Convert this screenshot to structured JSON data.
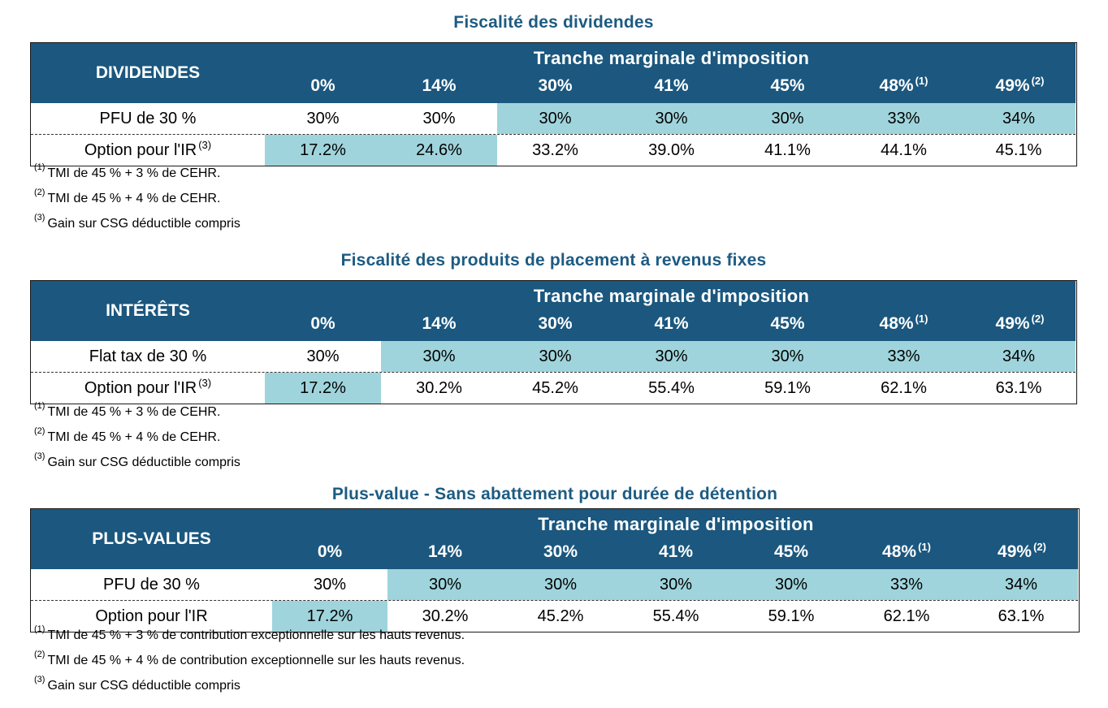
{
  "tables": [
    {
      "title": "Fiscalité des dividendes",
      "row_label": "DIVIDENDES",
      "tranche": "Tranche marginale d'imposition",
      "columns": [
        "0%",
        "14%",
        "30%",
        "41%",
        "45%",
        "48%",
        "49%"
      ],
      "column_sups": [
        "",
        "",
        "",
        "",
        "",
        "(1)",
        "(2)"
      ],
      "rows": [
        {
          "label": "PFU de 30 %",
          "label_sup": "",
          "values": [
            "30%",
            "30%",
            "30%",
            "30%",
            "30%",
            "33%",
            "34%"
          ],
          "highlight": [
            false,
            false,
            true,
            true,
            true,
            true,
            true
          ]
        },
        {
          "label": "Option pour l'IR",
          "label_sup": "(3)",
          "values": [
            "17.2%",
            "24.6%",
            "33.2%",
            "39.0%",
            "41.1%",
            "44.1%",
            "45.1%"
          ],
          "highlight": [
            true,
            true,
            false,
            false,
            false,
            false,
            false
          ]
        }
      ],
      "notes": [
        {
          "sup": "(1)",
          "text": "TMI de 45 % + 3 % de CEHR."
        },
        {
          "sup": "(2)",
          "text": "TMI de 45 % + 4 % de CEHR."
        },
        {
          "sup": "(3)",
          "text": "Gain sur CSG déductible compris"
        }
      ]
    },
    {
      "title": "Fiscalité des produits de placement à revenus fixes",
      "row_label": "INTÉRÊTS",
      "tranche": "Tranche marginale d'imposition",
      "columns": [
        "0%",
        "14%",
        "30%",
        "41%",
        "45%",
        "48%",
        "49%"
      ],
      "column_sups": [
        "",
        "",
        "",
        "",
        "",
        "(1)",
        "(2)"
      ],
      "rows": [
        {
          "label": "Flat tax de 30 %",
          "label_sup": "",
          "values": [
            "30%",
            "30%",
            "30%",
            "30%",
            "30%",
            "33%",
            "34%"
          ],
          "highlight": [
            false,
            true,
            true,
            true,
            true,
            true,
            true
          ]
        },
        {
          "label": "Option pour l'IR",
          "label_sup": "(3)",
          "values": [
            "17.2%",
            "30.2%",
            "45.2%",
            "55.4%",
            "59.1%",
            "62.1%",
            "63.1%"
          ],
          "highlight": [
            true,
            false,
            false,
            false,
            false,
            false,
            false
          ]
        }
      ],
      "notes": [
        {
          "sup": "(1)",
          "text": "TMI de 45 % + 3 % de CEHR."
        },
        {
          "sup": "(2)",
          "text": "TMI de 45 % + 4 % de CEHR."
        },
        {
          "sup": "(3)",
          "text": "Gain sur CSG déductible compris"
        }
      ]
    },
    {
      "title": "Plus-value - Sans abattement pour durée de détention",
      "row_label": "PLUS-VALUES",
      "tranche": "Tranche marginale d'imposition",
      "columns": [
        "0%",
        "14%",
        "30%",
        "41%",
        "45%",
        "48%",
        "49%"
      ],
      "column_sups": [
        "",
        "",
        "",
        "",
        "",
        "(1)",
        "(2)"
      ],
      "rows": [
        {
          "label": "PFU de 30 %",
          "label_sup": "",
          "values": [
            "30%",
            "30%",
            "30%",
            "30%",
            "30%",
            "33%",
            "34%"
          ],
          "highlight": [
            false,
            true,
            true,
            true,
            true,
            true,
            true
          ]
        },
        {
          "label": "Option pour l'IR",
          "label_sup": "",
          "values": [
            "17.2%",
            "30.2%",
            "45.2%",
            "55.4%",
            "59.1%",
            "62.1%",
            "63.1%"
          ],
          "highlight": [
            true,
            false,
            false,
            false,
            false,
            false,
            false
          ]
        }
      ],
      "notes": [
        {
          "sup": "(1)",
          "text": "TMI de 45 % + 3 % de contribution exceptionnelle sur les hauts revenus."
        },
        {
          "sup": "(2)",
          "text": "TMI de 45 % + 4 % de contribution exceptionnelle sur les hauts revenus."
        },
        {
          "sup": "(3)",
          "text": "Gain sur CSG déductible compris"
        }
      ]
    }
  ]
}
